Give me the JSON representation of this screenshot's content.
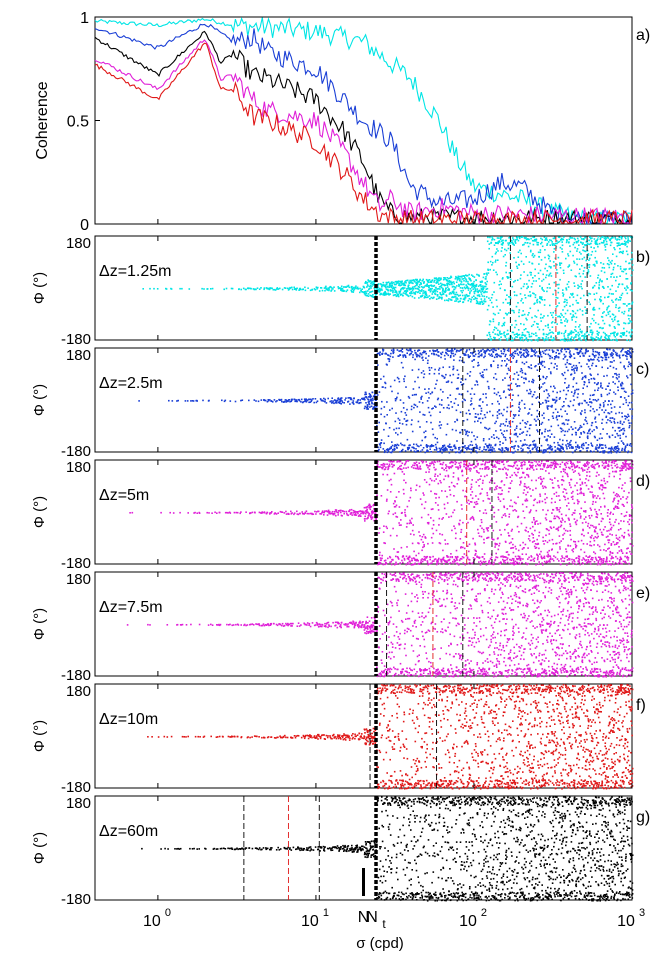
{
  "chart_data": [
    {
      "panel": "a)",
      "type": "line",
      "ylabel": "Coherence",
      "xscale": "log",
      "xlim": [
        0.4,
        1000
      ],
      "ylim": [
        0,
        1
      ],
      "yticks": [
        "0",
        "0.5",
        "1"
      ],
      "series": [
        {
          "color": "#00e5e5",
          "x": [
            0.4,
            1,
            2,
            3,
            5,
            10,
            20,
            40,
            60,
            80,
            100,
            200,
            300,
            500,
            1000
          ],
          "y": [
            0.98,
            0.96,
            0.99,
            0.96,
            0.95,
            0.93,
            0.88,
            0.7,
            0.5,
            0.3,
            0.18,
            0.12,
            0.06,
            0.02,
            0.02
          ]
        },
        {
          "color": "#1a3fd6",
          "x": [
            0.4,
            1,
            2,
            3,
            4,
            5,
            10,
            20,
            30,
            40,
            60,
            100,
            150,
            200,
            300,
            500,
            1000
          ],
          "y": [
            0.95,
            0.85,
            0.97,
            0.88,
            0.9,
            0.83,
            0.75,
            0.5,
            0.4,
            0.18,
            0.1,
            0.12,
            0.2,
            0.18,
            0.06,
            0.02,
            0.02
          ]
        },
        {
          "color": "#000000",
          "x": [
            0.4,
            1,
            2,
            2.5,
            3,
            4,
            5,
            10,
            15,
            20,
            25,
            30,
            40,
            60,
            100,
            1000
          ],
          "y": [
            0.9,
            0.72,
            0.93,
            0.78,
            0.82,
            0.72,
            0.7,
            0.6,
            0.45,
            0.3,
            0.12,
            0.05,
            0.03,
            0.03,
            0.03,
            0.02
          ]
        },
        {
          "color": "#e020d8",
          "x": [
            0.4,
            1,
            2,
            2.5,
            3,
            4,
            5,
            10,
            15,
            20,
            25,
            30,
            40,
            60,
            100,
            1000
          ],
          "y": [
            0.8,
            0.65,
            0.9,
            0.7,
            0.72,
            0.6,
            0.55,
            0.5,
            0.35,
            0.2,
            0.08,
            0.12,
            0.05,
            0.08,
            0.05,
            0.03
          ]
        },
        {
          "color": "#e01818",
          "x": [
            0.4,
            1,
            2,
            2.5,
            3,
            4,
            5,
            10,
            15,
            20,
            25,
            30,
            40,
            100,
            1000
          ],
          "y": [
            0.77,
            0.6,
            0.88,
            0.65,
            0.65,
            0.52,
            0.5,
            0.4,
            0.25,
            0.12,
            0.05,
            0.03,
            0.02,
            0.02,
            0.02
          ]
        }
      ]
    },
    {
      "panel": "b)",
      "type": "scatter",
      "label": "Δz=1.25m",
      "color": "#00e5e5",
      "vlines_black": [
        170,
        520
      ],
      "vline_red": 330
    },
    {
      "panel": "c)",
      "type": "scatter",
      "label": "Δz=2.5m",
      "color": "#1a3fd6",
      "vlines_black": [
        85,
        260
      ],
      "vline_red": 170
    },
    {
      "panel": "d)",
      "type": "scatter",
      "label": "Δz=5m",
      "color": "#e020d8",
      "vlines_black": [
        130
      ],
      "vline_red": 90
    },
    {
      "panel": "e)",
      "type": "scatter",
      "label": "Δz=7.5m",
      "color": "#e020d8",
      "vlines_black": [
        28,
        85
      ],
      "vline_red": 55
    },
    {
      "panel": "f)",
      "type": "scatter",
      "label": "Δz=10m",
      "color": "#e01818",
      "vlines_black": [
        22,
        58
      ],
      "vline_red": null
    },
    {
      "panel": "g)",
      "type": "scatter",
      "label": "Δz=60m",
      "color": "#000000",
      "vlines_black": [
        3.5,
        10.5
      ],
      "vline_red": 6.7
    }
  ],
  "phase_ylabel": "Φ (°)",
  "phase_ylim": [
    -180,
    180
  ],
  "phase_yticks": [
    "180",
    "-180"
  ],
  "xlabel": "σ (cpd)",
  "xticks": [
    {
      "value": 1,
      "base": "10",
      "exp": "0"
    },
    {
      "value": 10,
      "base": "10",
      "exp": "1"
    },
    {
      "value": 100,
      "base": "10",
      "exp": "2"
    },
    {
      "value": 1000,
      "base": "10",
      "exp": "3"
    }
  ],
  "Nt_x": 24,
  "N_x": 20,
  "markers": {
    "N": "N",
    "Nt_main": "N",
    "Nt_sub": "t"
  }
}
